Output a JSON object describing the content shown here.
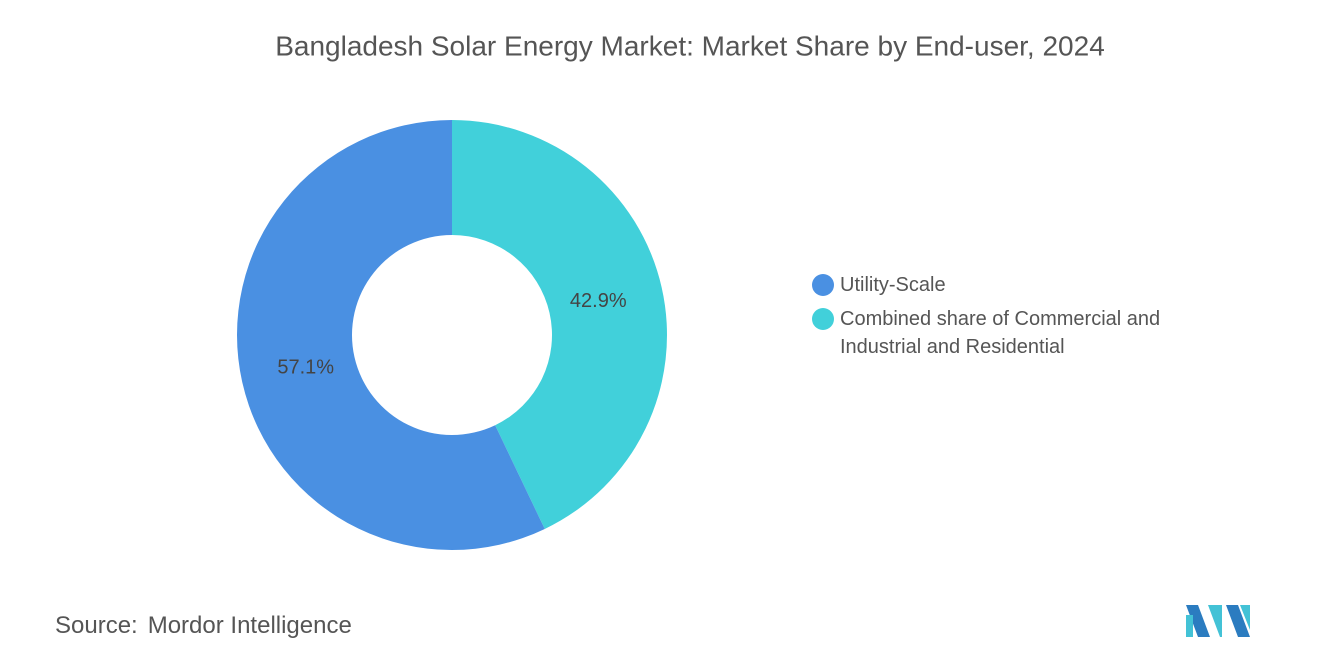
{
  "chart_data": {
    "type": "donut",
    "title": "Bangladesh Solar Energy Market: Market Share by End-user, 2024",
    "categories": [
      "Utility-Scale",
      "Combined share of Commercial and Industrial and Residential"
    ],
    "values": [
      57.1,
      42.9
    ],
    "value_labels": [
      "57.1%",
      "42.9%"
    ],
    "colors": [
      "#4a90e2",
      "#41d0da"
    ],
    "source": {
      "label": "Source:",
      "text": "Mordor Intelligence"
    }
  }
}
